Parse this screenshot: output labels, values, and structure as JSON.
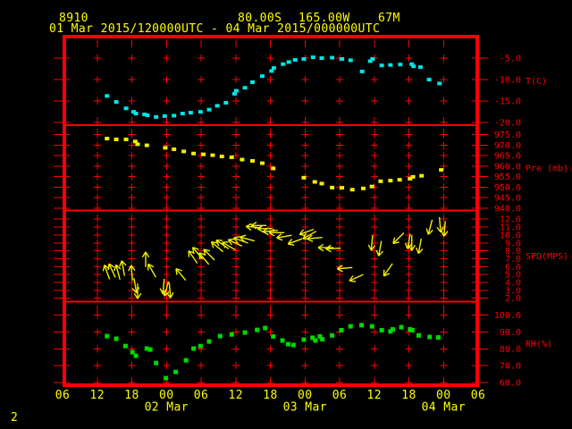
{
  "header": {
    "station_id": "8910",
    "latitude": "80.00S",
    "longitude": "165.00W",
    "elevation": "67M",
    "time_range": "01 Mar 2015/120000UTC - 04 Mar 2015/000000UTC"
  },
  "footer": {
    "page_number": "2"
  },
  "colors": {
    "background": "#000000",
    "grid": "#ff0000",
    "axis_text": "#ff0000",
    "title_text": "#ffff00",
    "temperature": "#00e6e6",
    "pressure": "#f0f000",
    "wind": "#f0f000",
    "humidity": "#00d900"
  },
  "chart_data": {
    "type": "scatter",
    "subtype": "meteogram-multi-panel",
    "grid": "on",
    "x_axis": {
      "hours_span": 72,
      "hours_per_tick": 6,
      "hour_labels": [
        "06",
        "12",
        "18",
        "00",
        "06",
        "12",
        "18",
        "00",
        "06",
        "12",
        "18",
        "00",
        "06"
      ],
      "date_labels": [
        {
          "label": "02 Mar",
          "tick_index": 3
        },
        {
          "label": "03 Mar",
          "tick_index": 7
        },
        {
          "label": "04 Mar",
          "tick_index": 11
        }
      ]
    },
    "panels": [
      {
        "name": "temperature",
        "label": "T(C)",
        "type": "scatter",
        "color_key": "temperature",
        "axis": {
          "rows": [
            -5,
            -10,
            -15,
            -20
          ],
          "row_labels": [
            "-5.0",
            "-10.0",
            "-15.0",
            "-20.0"
          ],
          "v_top": 0.0,
          "v_bottom": -20.6
        },
        "points": [
          [
            7.7,
            -13.8
          ],
          [
            9.3,
            -15.2
          ],
          [
            11.0,
            -16.7
          ],
          [
            12.3,
            -17.5
          ],
          [
            12.7,
            -17.9
          ],
          [
            14.2,
            -18.1
          ],
          [
            14.7,
            -18.3
          ],
          [
            16.2,
            -18.7
          ],
          [
            17.7,
            -18.5
          ],
          [
            19.3,
            -18.4
          ],
          [
            20.8,
            -17.9
          ],
          [
            22.2,
            -17.7
          ],
          [
            23.9,
            -17.5
          ],
          [
            25.4,
            -17.0
          ],
          [
            26.8,
            -16.1
          ],
          [
            28.3,
            -15.4
          ],
          [
            29.8,
            -13.3
          ],
          [
            30.1,
            -12.6
          ],
          [
            31.6,
            -11.9
          ],
          [
            32.9,
            -10.6
          ],
          [
            34.6,
            -9.2
          ],
          [
            36.2,
            -8.0
          ],
          [
            36.6,
            -7.3
          ],
          [
            38.2,
            -6.4
          ],
          [
            39.2,
            -5.9
          ],
          [
            40.3,
            -5.4
          ],
          [
            41.8,
            -5.2
          ],
          [
            43.4,
            -4.8
          ],
          [
            44.9,
            -5.0
          ],
          [
            46.7,
            -4.9
          ],
          [
            48.4,
            -5.2
          ],
          [
            49.9,
            -5.5
          ],
          [
            51.9,
            -8.1
          ],
          [
            53.3,
            -5.7
          ],
          [
            53.7,
            -5.2
          ],
          [
            55.3,
            -6.7
          ],
          [
            56.8,
            -6.6
          ],
          [
            58.5,
            -6.5
          ],
          [
            60.5,
            -6.4
          ],
          [
            60.8,
            -6.9
          ],
          [
            62.0,
            -7.1
          ],
          [
            63.5,
            -10.0
          ],
          [
            65.3,
            -10.9
          ]
        ]
      },
      {
        "name": "pressure",
        "label": "Pre (mb)",
        "type": "scatter",
        "color_key": "pressure",
        "axis": {
          "rows": [
            975,
            970,
            965,
            960,
            955,
            950,
            945,
            940
          ],
          "row_labels": [
            "975.0",
            "970.0",
            "965.0",
            "960.0",
            "955.0",
            "950.0",
            "945.0",
            "940.0"
          ],
          "v_top": 979.5,
          "v_bottom": 938.9
        },
        "points": [
          [
            7.7,
            973.1
          ],
          [
            9.3,
            972.7
          ],
          [
            11.0,
            972.7
          ],
          [
            12.6,
            971.7
          ],
          [
            13.0,
            970.4
          ],
          [
            14.6,
            969.9
          ],
          [
            17.8,
            968.7
          ],
          [
            19.3,
            968.0
          ],
          [
            21.0,
            967.0
          ],
          [
            22.7,
            966.0
          ],
          [
            24.4,
            965.6
          ],
          [
            26.0,
            965.2
          ],
          [
            27.6,
            964.6
          ],
          [
            29.3,
            964.2
          ],
          [
            31.1,
            963.1
          ],
          [
            32.9,
            962.5
          ],
          [
            34.6,
            961.4
          ],
          [
            36.5,
            958.9
          ],
          [
            41.8,
            954.5
          ],
          [
            43.7,
            952.5
          ],
          [
            44.9,
            951.7
          ],
          [
            46.7,
            949.8
          ],
          [
            48.4,
            949.7
          ],
          [
            50.2,
            948.8
          ],
          [
            52.1,
            949.4
          ],
          [
            53.6,
            950.3
          ],
          [
            55.1,
            952.8
          ],
          [
            56.8,
            953.1
          ],
          [
            58.4,
            953.5
          ],
          [
            60.2,
            954.0
          ],
          [
            60.7,
            954.9
          ],
          [
            62.2,
            955.4
          ],
          [
            65.6,
            958.2
          ]
        ]
      },
      {
        "name": "wind-speed",
        "label": "SPD(MPS)",
        "type": "wind-vector",
        "color_key": "wind",
        "axis": {
          "rows": [
            12,
            11,
            10,
            9,
            8,
            7,
            6,
            5,
            4,
            3,
            2
          ],
          "row_labels": [
            "12.0",
            "11.0",
            "10.0",
            "9.0",
            "8.0",
            "7.0",
            "6.0",
            "5.0",
            "4.0",
            "3.0",
            "2.0"
          ],
          "v_top": 13.1,
          "v_bottom": 1.57
        },
        "arrows_format": [
          "hours_from_axis_start",
          "speed_mps",
          "direction_deg_cw_from_up"
        ],
        "arrows": [
          [
            7.7,
            5.3,
            340
          ],
          [
            8.6,
            5.5,
            335
          ],
          [
            9.6,
            5.3,
            345
          ],
          [
            10.5,
            5.8,
            350
          ],
          [
            12.0,
            5.2,
            355
          ],
          [
            12.6,
            3.6,
            170
          ],
          [
            13.0,
            2.9,
            180
          ],
          [
            14.4,
            6.9,
            0
          ],
          [
            15.5,
            5.5,
            330
          ],
          [
            17.5,
            3.5,
            185
          ],
          [
            18.0,
            3.2,
            195
          ],
          [
            18.6,
            3.0,
            175
          ],
          [
            20.5,
            5.0,
            320
          ],
          [
            22.6,
            7.2,
            325
          ],
          [
            23.4,
            7.7,
            320
          ],
          [
            24.5,
            7.0,
            320
          ],
          [
            25.4,
            7.5,
            315
          ],
          [
            26.8,
            8.5,
            310
          ],
          [
            27.7,
            8.8,
            305
          ],
          [
            28.8,
            8.6,
            300
          ],
          [
            29.9,
            9.0,
            295
          ],
          [
            30.9,
            9.3,
            290
          ],
          [
            32.0,
            9.5,
            285
          ],
          [
            33.1,
            11.0,
            275
          ],
          [
            34.0,
            11.2,
            270
          ],
          [
            35.1,
            10.8,
            270
          ],
          [
            36.0,
            10.5,
            265
          ],
          [
            37.1,
            10.3,
            270
          ],
          [
            38.4,
            9.8,
            260
          ],
          [
            40.3,
            9.2,
            250
          ],
          [
            42.3,
            10.4,
            250
          ],
          [
            42.8,
            10.0,
            240
          ],
          [
            43.7,
            9.6,
            265
          ],
          [
            45.6,
            8.4,
            270
          ],
          [
            46.9,
            8.3,
            268
          ],
          [
            48.9,
            5.8,
            265
          ],
          [
            50.9,
            4.6,
            245
          ],
          [
            53.6,
            9.0,
            185
          ],
          [
            55.0,
            8.3,
            190
          ],
          [
            56.4,
            5.6,
            215
          ],
          [
            58.2,
            9.6,
            225
          ],
          [
            60.0,
            9.2,
            190
          ],
          [
            60.5,
            9.0,
            180
          ],
          [
            61.9,
            8.6,
            190
          ],
          [
            63.7,
            11.0,
            195
          ],
          [
            65.4,
            11.3,
            175
          ],
          [
            66.2,
            10.8,
            185
          ]
        ]
      },
      {
        "name": "relative-humidity",
        "label": "RH(%)",
        "type": "scatter",
        "color_key": "humidity",
        "axis": {
          "rows": [
            100,
            90,
            80,
            70,
            60
          ],
          "row_labels": [
            "100.0",
            "90.0",
            "80.0",
            "70.0",
            "60.0"
          ],
          "v_top": 108.1,
          "v_bottom": 58.4
        },
        "points": [
          [
            7.7,
            87.6
          ],
          [
            9.3,
            86.0
          ],
          [
            10.9,
            81.7
          ],
          [
            12.1,
            78.0
          ],
          [
            12.7,
            75.9
          ],
          [
            14.6,
            80.2
          ],
          [
            15.2,
            79.6
          ],
          [
            16.2,
            71.6
          ],
          [
            17.9,
            62.6
          ],
          [
            19.6,
            66.3
          ],
          [
            21.4,
            73.2
          ],
          [
            22.7,
            80.2
          ],
          [
            23.9,
            81.7
          ],
          [
            25.4,
            84.4
          ],
          [
            27.3,
            87.6
          ],
          [
            29.3,
            88.6
          ],
          [
            31.6,
            89.7
          ],
          [
            33.7,
            91.3
          ],
          [
            35.1,
            92.4
          ],
          [
            36.5,
            87.4
          ],
          [
            38.1,
            85.0
          ],
          [
            39.1,
            82.8
          ],
          [
            40.0,
            82.3
          ],
          [
            41.8,
            85.5
          ],
          [
            43.3,
            86.6
          ],
          [
            43.8,
            85.0
          ],
          [
            44.6,
            87.4
          ],
          [
            45.0,
            85.7
          ],
          [
            46.7,
            88.0
          ],
          [
            48.3,
            91.1
          ],
          [
            49.9,
            93.4
          ],
          [
            51.8,
            94.1
          ],
          [
            53.6,
            93.4
          ],
          [
            55.3,
            91.1
          ],
          [
            56.8,
            90.4
          ],
          [
            57.2,
            91.6
          ],
          [
            58.7,
            92.9
          ],
          [
            60.2,
            91.6
          ],
          [
            60.6,
            91.1
          ],
          [
            61.7,
            88.0
          ],
          [
            63.6,
            87.1
          ],
          [
            65.1,
            86.8
          ]
        ]
      }
    ]
  }
}
